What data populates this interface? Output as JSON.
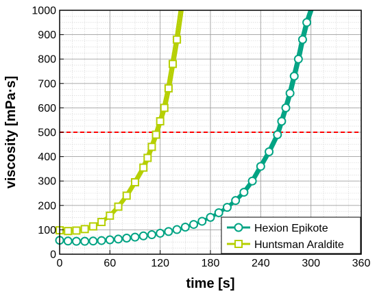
{
  "chart_data": {
    "type": "line",
    "xlabel": "time [s]",
    "ylabel": "viscosity [mPa·s]",
    "xlim": [
      0,
      360
    ],
    "ylim": [
      0,
      1000
    ],
    "xticks": [
      0,
      60,
      120,
      180,
      240,
      300,
      360
    ],
    "yticks": [
      0,
      100,
      200,
      300,
      400,
      500,
      600,
      700,
      800,
      900,
      1000
    ],
    "grid": true,
    "legend_position": "bottom-right",
    "reference_line": {
      "y": 500,
      "color": "#ff0000",
      "style": "dashed"
    },
    "series": [
      {
        "name": "Hexion Epikote",
        "color": "#00a383",
        "marker": "circle",
        "x": [
          0,
          10,
          20,
          30,
          40,
          50,
          60,
          70,
          80,
          90,
          100,
          110,
          120,
          130,
          140,
          150,
          160,
          170,
          180,
          190,
          200,
          210,
          220,
          230,
          240,
          250,
          260,
          265,
          270,
          275,
          280,
          285,
          290,
          295,
          300
        ],
        "y": [
          57,
          54,
          53,
          53,
          54,
          56,
          59,
          62,
          66,
          70,
          75,
          80,
          86,
          93,
          101,
          111,
          122,
          135,
          151,
          170,
          192,
          220,
          254,
          300,
          360,
          420,
          490,
          545,
          600,
          660,
          730,
          800,
          880,
          950,
          1000
        ]
      },
      {
        "name": "Huntsman Araldite",
        "color": "#b5cf00",
        "marker": "square",
        "x": [
          0,
          10,
          20,
          30,
          40,
          50,
          60,
          70,
          80,
          90,
          100,
          105,
          110,
          115,
          120,
          125,
          130,
          135,
          140,
          145
        ],
        "y": [
          98,
          95,
          97,
          103,
          114,
          132,
          158,
          195,
          240,
          295,
          355,
          395,
          440,
          490,
          545,
          600,
          680,
          780,
          880,
          1000
        ]
      }
    ]
  }
}
